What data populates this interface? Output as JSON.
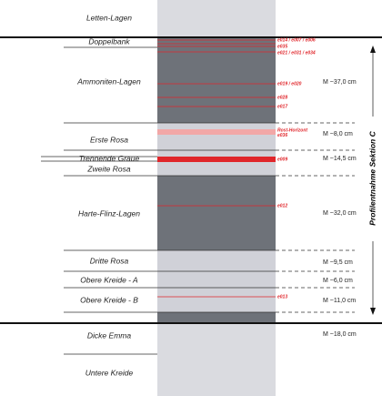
{
  "layers": [
    {
      "label": "Letten-Lagen"
    },
    {
      "label": "Doppelbank"
    },
    {
      "label": "Ammoniten-Lagen",
      "measure": "M ~37,0 cm"
    },
    {
      "label": "Erste Rosa",
      "measure": "M ~8,0 cm"
    },
    {
      "label": "Trennende Graue",
      "measure": "M ~14,5 cm"
    },
    {
      "label": "Zweite Rosa"
    },
    {
      "label": "Harte-Flinz-Lagen",
      "measure": "M ~32,0 cm"
    },
    {
      "label": "Dritte Rosa",
      "measure": "M ~9,5 cm"
    },
    {
      "label": "Obere Kreide - A",
      "measure": "M ~6,0 cm"
    },
    {
      "label": "Obere Kreide - B",
      "measure": "M ~11,0 cm"
    },
    {
      "label": "Dicke Emma",
      "measure": "M ~18,0 cm"
    },
    {
      "label": "Untere Kreide"
    }
  ],
  "samples": [
    "e014 / e007 / e006",
    "e035",
    "e021 / e031 / e034",
    "e019 / e020",
    "e028",
    "e017",
    "Rost-Horizont",
    "e036",
    "e009",
    "e012",
    "e013"
  ],
  "section_label": "Profilentnahme Sektion C"
}
